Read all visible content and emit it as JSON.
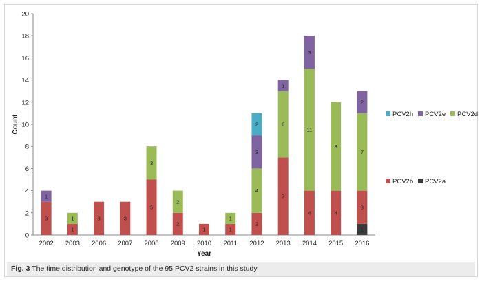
{
  "caption": {
    "fig_label": "Fig. 3",
    "text": " The time distribution and genotype of the 95 PCV2 strains in this study"
  },
  "chart_data": {
    "type": "bar",
    "stacked": true,
    "xlabel": "Year",
    "ylabel": "Count",
    "ylim": [
      0,
      20
    ],
    "ytick_step": 2,
    "grid": false,
    "categories": [
      "2002",
      "2003",
      "2006",
      "2007",
      "2008",
      "2009",
      "2010",
      "2011",
      "2012",
      "2013",
      "2014",
      "2015",
      "2016"
    ],
    "series": [
      {
        "name": "PCV2a",
        "color": "#3a3a3a",
        "values": [
          0,
          0,
          0,
          0,
          0,
          0,
          0,
          0,
          0,
          0,
          0,
          0,
          1
        ]
      },
      {
        "name": "PCV2b",
        "color": "#c0504d",
        "values": [
          3,
          1,
          3,
          3,
          5,
          2,
          1,
          1,
          2,
          7,
          4,
          4,
          3
        ]
      },
      {
        "name": "PCV2d",
        "color": "#9bbb59",
        "values": [
          0,
          1,
          0,
          0,
          3,
          2,
          0,
          1,
          4,
          6,
          11,
          8,
          7
        ]
      },
      {
        "name": "PCV2e",
        "color": "#8064a2",
        "values": [
          1,
          0,
          0,
          0,
          0,
          0,
          0,
          0,
          3,
          1,
          3,
          0,
          2
        ]
      },
      {
        "name": "PCV2h",
        "color": "#4bacc6",
        "values": [
          0,
          0,
          0,
          0,
          0,
          0,
          0,
          0,
          2,
          0,
          0,
          0,
          0
        ]
      }
    ],
    "legend": {
      "placement": "right",
      "rows": [
        [
          "PCV2h",
          "PCV2e",
          "PCV2d"
        ],
        [
          "PCV2b",
          "PCV2a"
        ]
      ]
    }
  }
}
